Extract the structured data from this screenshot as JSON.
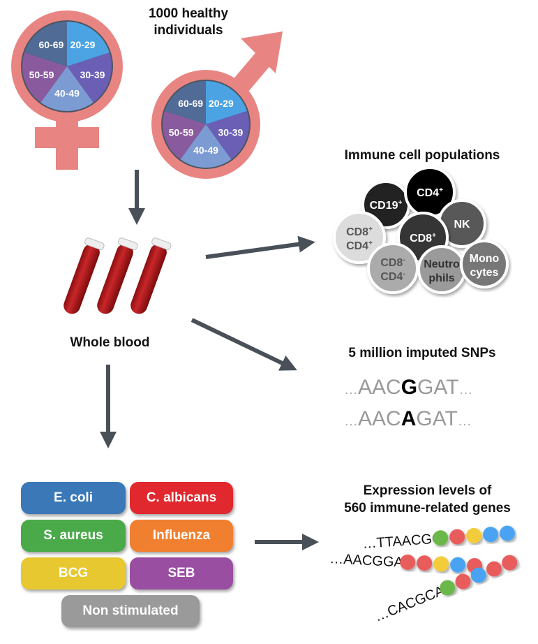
{
  "cohort": {
    "title_line1": "1000 healthy individuals",
    "age_groups": [
      "20-29",
      "30-39",
      "40-49",
      "50-59",
      "60-69"
    ],
    "age_colors": [
      "#4ba3e3",
      "#6a5fb5",
      "#7c9bd2",
      "#8a5a9f",
      "#506b96"
    ],
    "symbol_color": "#e88582"
  },
  "blood": {
    "label": "Whole blood"
  },
  "cells": {
    "title": "Immune cell populations",
    "populations": [
      {
        "line1": "CD19",
        "sup1": "+",
        "line2": "",
        "sup2": "",
        "fill": "#222222",
        "text": "#ffffff"
      },
      {
        "line1": "CD4",
        "sup1": "+",
        "line2": "",
        "sup2": "",
        "fill": "#000000",
        "text": "#ffffff"
      },
      {
        "line1": "NK",
        "sup1": "",
        "line2": "",
        "sup2": "",
        "fill": "#595959",
        "text": "#ffffff"
      },
      {
        "line1": "CD8",
        "sup1": "+",
        "line2": "",
        "sup2": "",
        "fill": "#363636",
        "text": "#ffffff"
      },
      {
        "line1": "CD8",
        "sup1": "+",
        "line2": "CD4",
        "sup2": "+",
        "fill": "#dcdcdc",
        "text": "#555555"
      },
      {
        "line1": "CD8",
        "sup1": "-",
        "line2": "CD4",
        "sup2": "-",
        "fill": "#ababab",
        "text": "#555555"
      },
      {
        "line1": "Neutro",
        "sup1": "",
        "line2": "phils",
        "sup2": "",
        "fill": "#9a9a9a",
        "text": "#333333"
      },
      {
        "line1": "Mono",
        "sup1": "",
        "line2": "cytes",
        "sup2": "",
        "fill": "#777777",
        "text": "#ffffff"
      }
    ]
  },
  "snps": {
    "title": "5 million imputed SNPs",
    "seq1": {
      "pre": "AAC",
      "alt": "G",
      "post": "GAT"
    },
    "seq2": {
      "pre": "AAC",
      "alt": "A",
      "post": "GAT"
    },
    "ellipsis": "…"
  },
  "stimuli": {
    "items": [
      {
        "label": "E. coli",
        "color": "#3a78b8"
      },
      {
        "label": "C. albicans",
        "color": "#e0282e"
      },
      {
        "label": "S. aureus",
        "color": "#4aaa4a"
      },
      {
        "label": "Influenza",
        "color": "#f08030"
      },
      {
        "label": "BCG",
        "color": "#e8c830"
      },
      {
        "label": "SEB",
        "color": "#9a4ea2"
      },
      {
        "label": "Non stimulated",
        "color": "#9a9a9a"
      }
    ]
  },
  "expression": {
    "title_line1": "Expression levels of",
    "title_line2": "560 immune-related genes",
    "rows": [
      {
        "seq": "…TTAACGG",
        "beads": [
          "#6bb84a",
          "#e85c5c",
          "#f2cc3a",
          "#4aa3f2",
          "#4aa3f2"
        ]
      },
      {
        "seq": "…AACGGAT",
        "beads": [
          "#e85c5c",
          "#e85c5c",
          "#f2cc3a",
          "#4aa3f2",
          "#e85c5c"
        ]
      },
      {
        "seq": "…CACGCAA",
        "beads": [
          "#6bb84a",
          "#e85c5c",
          "#4aa3f2",
          "#e85c5c",
          "#e85c5c"
        ]
      }
    ]
  },
  "arrow_color": "#4a5058"
}
